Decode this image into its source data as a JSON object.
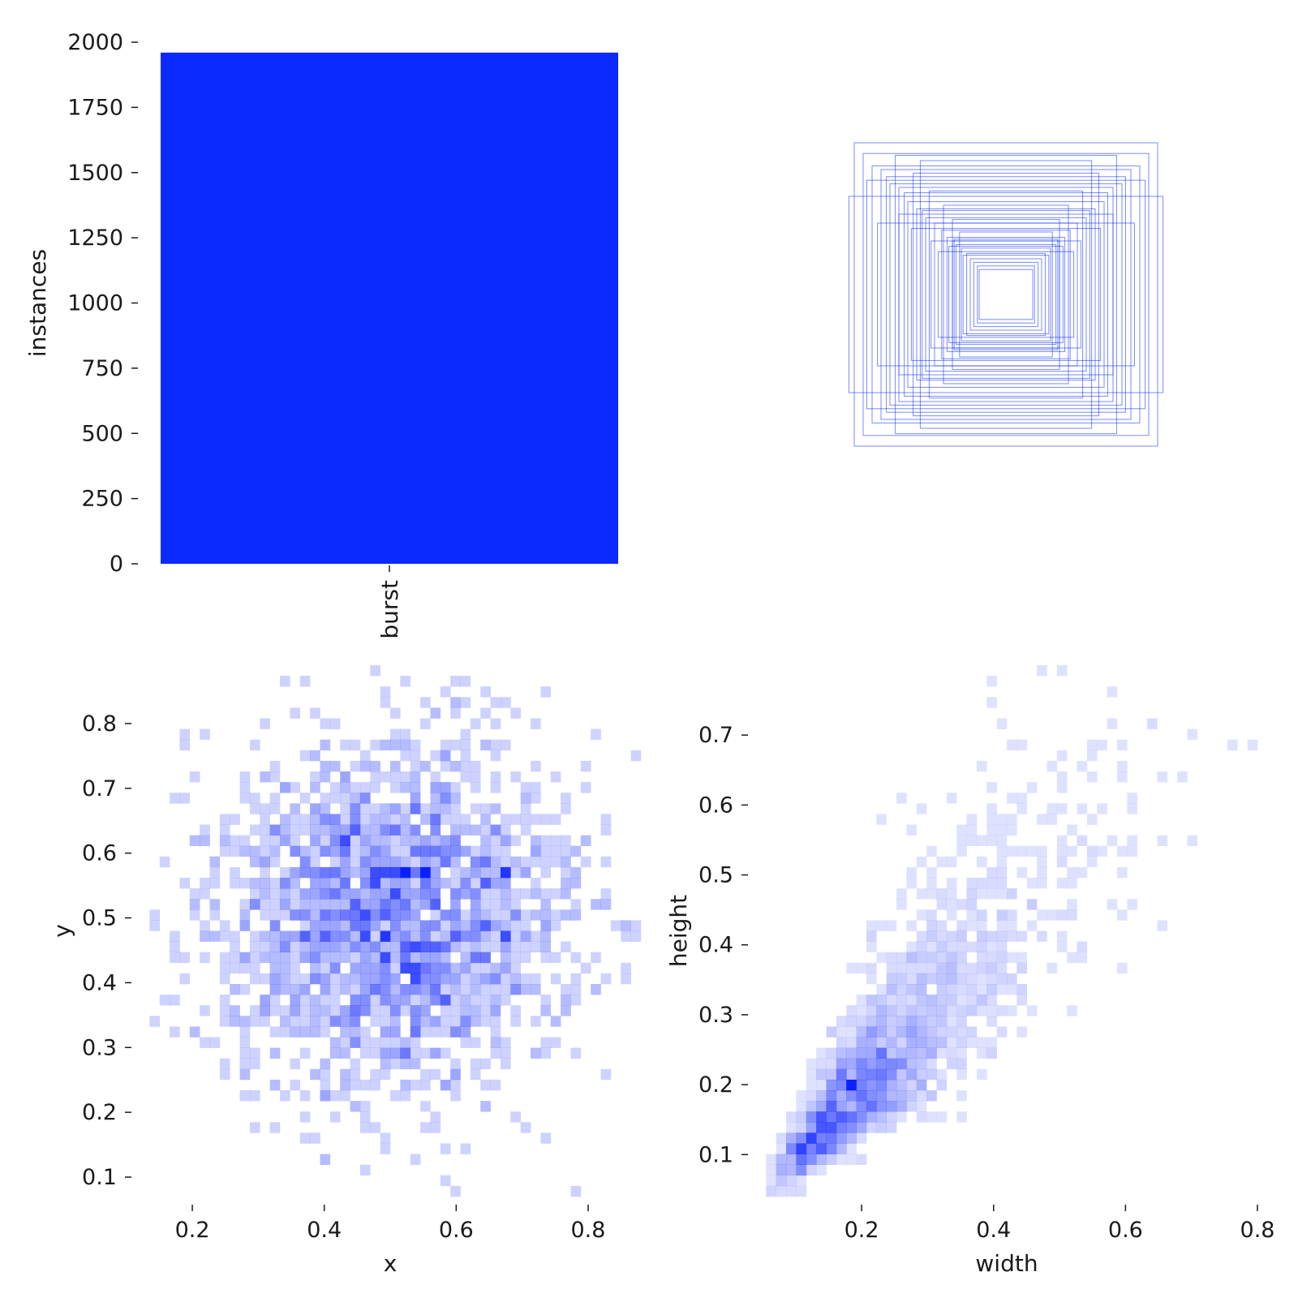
{
  "colors": {
    "bar": "#0a2aff",
    "box_stroke": "#0a2aff",
    "hist_base": "#0a20ff",
    "text": "#1a1a1a"
  },
  "chart_data": [
    {
      "type": "bar",
      "categories": [
        "burst"
      ],
      "values": [
        1960
      ],
      "ylabel": "instances",
      "xlabel": "",
      "ylim": [
        0,
        2000
      ],
      "yticks": [
        0,
        250,
        500,
        750,
        1000,
        1250,
        1500,
        1750,
        2000
      ],
      "ytick_labels": [
        "0",
        "250",
        "500",
        "750",
        "1000",
        "1250",
        "1500",
        "1750",
        "2000"
      ]
    },
    {
      "type": "other",
      "description_free": "",
      "boxes": [
        [
          0.22,
          0.23
        ],
        [
          0.2,
          0.2
        ],
        [
          0.18,
          0.18
        ],
        [
          0.16,
          0.16
        ],
        [
          0.15,
          0.14
        ],
        [
          0.25,
          0.26
        ],
        [
          0.28,
          0.28
        ],
        [
          0.3,
          0.3
        ],
        [
          0.33,
          0.32
        ],
        [
          0.36,
          0.36
        ],
        [
          0.4,
          0.4
        ],
        [
          0.45,
          0.43
        ],
        [
          0.5,
          0.48
        ],
        [
          0.55,
          0.52
        ],
        [
          0.6,
          0.6
        ],
        [
          0.65,
          0.62
        ],
        [
          0.7,
          0.7
        ],
        [
          0.75,
          0.72
        ],
        [
          0.8,
          0.79
        ],
        [
          0.85,
          0.85
        ],
        [
          0.52,
          0.68
        ],
        [
          0.35,
          0.5
        ],
        [
          0.6,
          0.45
        ],
        [
          0.42,
          0.3
        ],
        [
          0.3,
          0.42
        ],
        [
          0.88,
          0.55
        ],
        [
          0.48,
          0.75
        ],
        [
          0.72,
          0.4
        ],
        [
          0.26,
          0.35
        ],
        [
          0.38,
          0.24
        ],
        [
          0.57,
          0.57
        ],
        [
          0.47,
          0.47
        ],
        [
          0.67,
          0.66
        ],
        [
          0.24,
          0.22
        ],
        [
          0.32,
          0.27
        ],
        [
          0.62,
          0.78
        ],
        [
          0.78,
          0.64
        ],
        [
          0.43,
          0.58
        ],
        [
          0.53,
          0.37
        ],
        [
          0.29,
          0.31
        ]
      ]
    },
    {
      "type": "heatmap",
      "xlabel": "x",
      "ylabel": "y",
      "xlim": [
        0.12,
        0.88
      ],
      "ylim": [
        0.07,
        0.89
      ],
      "xticks": [
        0.2,
        0.4,
        0.6,
        0.8
      ],
      "xtick_labels": [
        "0.2",
        "0.4",
        "0.6",
        "0.8"
      ],
      "yticks": [
        0.1,
        0.2,
        0.3,
        0.4,
        0.5,
        0.6,
        0.7,
        0.8
      ],
      "ytick_labels": [
        "0.1",
        "0.2",
        "0.3",
        "0.4",
        "0.5",
        "0.6",
        "0.7",
        "0.8"
      ],
      "bins": 50,
      "distribution": {
        "x_mean": 0.5,
        "x_sd": 0.14,
        "y_mean": 0.5,
        "y_sd": 0.14,
        "count": 1960
      }
    },
    {
      "type": "heatmap",
      "xlabel": "width",
      "ylabel": "height",
      "xlim": [
        0.04,
        0.8
      ],
      "ylim": [
        0.04,
        0.8
      ],
      "xticks": [
        0.2,
        0.4,
        0.6,
        0.8
      ],
      "xtick_labels": [
        "0.2",
        "0.4",
        "0.6",
        "0.8"
      ],
      "yticks": [
        0.1,
        0.2,
        0.3,
        0.4,
        0.5,
        0.6,
        0.7
      ],
      "ytick_labels": [
        "0.1",
        "0.2",
        "0.3",
        "0.4",
        "0.5",
        "0.6",
        "0.7"
      ],
      "bins": 50,
      "distribution": {
        "x_mean": 0.22,
        "x_sd": 0.12,
        "y_mean": 0.21,
        "y_sd": 0.1,
        "count": 1960
      }
    }
  ]
}
